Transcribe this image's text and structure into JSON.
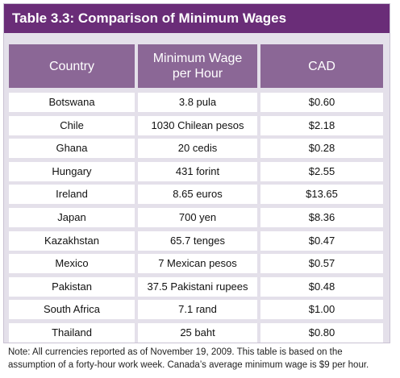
{
  "table": {
    "title": "Table 3.3: Comparison of Minimum Wages",
    "headers": [
      "Country",
      "Minimum Wage\nper Hour",
      "CAD"
    ],
    "rows": [
      [
        "Botswana",
        "3.8 pula",
        "$0.60"
      ],
      [
        "Chile",
        "1030 Chilean pesos",
        "$2.18"
      ],
      [
        "Ghana",
        "20 cedis",
        "$0.28"
      ],
      [
        "Hungary",
        "431 forint",
        "$2.55"
      ],
      [
        "Ireland",
        "8.65 euros",
        "$13.65"
      ],
      [
        "Japan",
        "700 yen",
        "$8.36"
      ],
      [
        "Kazakhstan",
        "65.7 tenges",
        "$0.47"
      ],
      [
        "Mexico",
        "7 Mexican pesos",
        "$0.57"
      ],
      [
        "Pakistan",
        "37.5 Pakistani rupees",
        "$0.48"
      ],
      [
        "South Africa",
        "7.1 rand",
        "$1.00"
      ],
      [
        "Thailand",
        "25 baht",
        "$0.80"
      ]
    ],
    "note_line1": "Note: All currencies reported as of November 19, 2009. This table is based on the",
    "note_line2": "assumption of a forty-hour work week. Canada’s average minimum wage is $9 per hour."
  },
  "colors": {
    "title_bar": "#6a2d78",
    "header_cell": "#8b6796",
    "panel": "#e4e0ea"
  }
}
